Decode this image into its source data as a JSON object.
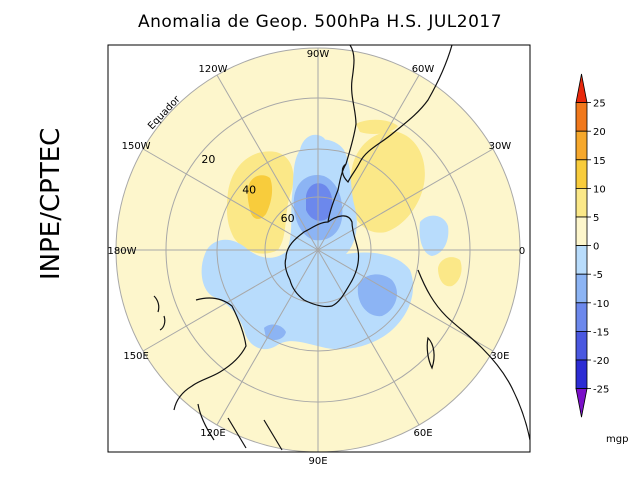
{
  "title": "Anomalia de Geop. 500hPa H.S. JUL2017",
  "institution": "INPE/CPTEC",
  "map": {
    "projection": "polar-stereographic-south",
    "longitude_labels": [
      {
        "label": "90W",
        "lon": -90
      },
      {
        "label": "60W",
        "lon": -60
      },
      {
        "label": "30W",
        "lon": -30
      },
      {
        "label": "0",
        "lon": 0
      },
      {
        "label": "30E",
        "lon": 30
      },
      {
        "label": "60E",
        "lon": 60
      },
      {
        "label": "90E",
        "lon": 90
      },
      {
        "label": "120E",
        "lon": 120
      },
      {
        "label": "150E",
        "lon": 150
      },
      {
        "label": "180W",
        "lon": 180
      },
      {
        "label": "150W",
        "lon": -150
      },
      {
        "label": "120W",
        "lon": -120
      }
    ],
    "latitude_labels": [
      {
        "label": "20",
        "lat": -20
      },
      {
        "label": "40",
        "lat": -40
      },
      {
        "label": "60",
        "lat": -60
      }
    ],
    "equator_label": "Equador"
  },
  "colorbar": {
    "unit": "mgp",
    "levels": [
      "25",
      "20",
      "15",
      "10",
      "5",
      "0",
      "-5",
      "-10",
      "-15",
      "-20",
      "-25"
    ],
    "colors": [
      "#e8280c",
      "#f0781c",
      "#f6a82c",
      "#f8cc3c",
      "#fbe888",
      "#fdf6cc",
      "#b8dcfc",
      "#8cb4f4",
      "#6c88ec",
      "#4a58e0",
      "#2c2cd4",
      "#7a10c8"
    ]
  }
}
